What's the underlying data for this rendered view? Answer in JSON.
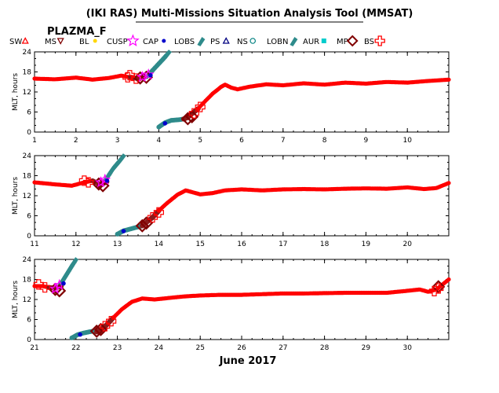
{
  "header": {
    "title": "(IKI RAS) Multi-Missions Situation Analysis Tool (MMSAT)",
    "satellite": "PLAZMA_F"
  },
  "legend": {
    "items": [
      {
        "label": "SW",
        "symbol": "triangle",
        "color": "#ff0000"
      },
      {
        "label": "MS",
        "symbol": "triangle-down",
        "color": "#800000"
      },
      {
        "label": "BL",
        "symbol": "dot",
        "color": "#ffd700"
      },
      {
        "label": "CUSP",
        "symbol": "star",
        "color": "#ff00ff"
      },
      {
        "label": "CAP",
        "symbol": "dot",
        "color": "#0000cc"
      },
      {
        "label": "LOBS",
        "symbol": "slab",
        "color": "#2e8b8b"
      },
      {
        "label": "PS",
        "symbol": "triangle",
        "color": "#000080"
      },
      {
        "label": "NS",
        "symbol": "circle",
        "color": "#008080"
      },
      {
        "label": "LOBN",
        "symbol": "slab",
        "color": "#2e8b8b"
      },
      {
        "label": "AUR",
        "symbol": "square",
        "color": "#00cccc"
      },
      {
        "label": "MP",
        "symbol": "diamond",
        "color": "#800000"
      },
      {
        "label": "BS",
        "symbol": "cross",
        "color": "#ff0000"
      }
    ]
  },
  "colors": {
    "sw": "#ff0000",
    "ms": "#8b1a1a",
    "lobe": "#2e8b8b",
    "ps": "#000080",
    "mp": "#800000",
    "bs": "#ff0000",
    "cusp": "#ff00ff",
    "cap": "#0000cc"
  },
  "chart_data": {
    "type": "scatter",
    "xlabel": "June 2017",
    "ylabel": "MLT, hours",
    "yticks": [
      "0",
      "6",
      "12",
      "18",
      "24"
    ],
    "panels": [
      {
        "xlim": [
          1,
          11
        ],
        "ylim": [
          0,
          24
        ],
        "xticks": [
          1,
          2,
          3,
          4,
          5,
          6,
          7,
          8,
          9,
          10
        ],
        "sw": [
          [
            1.0,
            16.0
          ],
          [
            1.5,
            15.8
          ],
          [
            2.0,
            16.3
          ],
          [
            2.4,
            15.7
          ],
          [
            2.8,
            16.2
          ],
          [
            3.1,
            16.9
          ],
          [
            3.3,
            16.4
          ]
        ],
        "ms": [
          [
            3.3,
            16.4
          ],
          [
            3.5,
            16.0
          ],
          [
            3.7,
            16.6
          ]
        ],
        "lobe": [
          [
            3.75,
            17.5
          ],
          [
            3.9,
            19.5
          ],
          [
            4.05,
            21.5
          ],
          [
            4.2,
            23.5
          ]
        ],
        "ps": [
          [
            4.0,
            1.5
          ],
          [
            4.15,
            2.8
          ],
          [
            4.3,
            3.5
          ],
          [
            4.5,
            3.7
          ],
          [
            4.6,
            3.9
          ]
        ],
        "ms2": [
          [
            4.6,
            3.9
          ],
          [
            4.7,
            4.4
          ],
          [
            4.8,
            5.5
          ],
          [
            4.95,
            7.0
          ]
        ],
        "sw2": [
          [
            4.95,
            7.0
          ],
          [
            5.1,
            9.0
          ],
          [
            5.3,
            11.5
          ],
          [
            5.5,
            13.5
          ],
          [
            5.6,
            14.2
          ],
          [
            5.75,
            13.3
          ],
          [
            5.9,
            12.8
          ],
          [
            6.2,
            13.6
          ],
          [
            6.6,
            14.3
          ],
          [
            7.0,
            14.0
          ],
          [
            7.5,
            14.6
          ],
          [
            8.0,
            14.2
          ],
          [
            8.5,
            14.8
          ],
          [
            9.0,
            14.5
          ],
          [
            9.5,
            15.0
          ],
          [
            10.0,
            14.8
          ],
          [
            10.5,
            15.3
          ],
          [
            11.0,
            15.7
          ]
        ],
        "mp": [
          [
            3.55,
            16.2
          ],
          [
            3.7,
            16.4
          ],
          [
            4.7,
            4.0
          ],
          [
            4.8,
            4.6
          ]
        ],
        "bs": [
          [
            3.25,
            16.4
          ],
          [
            3.3,
            17.0
          ],
          [
            3.45,
            16.0
          ],
          [
            4.85,
            5.6
          ],
          [
            5.0,
            7.5
          ]
        ],
        "cusp": [
          [
            3.6,
            16.5
          ],
          [
            3.75,
            17.2
          ]
        ],
        "cap": [
          [
            3.8,
            17.0
          ],
          [
            4.15,
            2.6
          ]
        ]
      },
      {
        "xlim": [
          11,
          21
        ],
        "ylim": [
          0,
          24
        ],
        "xticks": [
          11,
          12,
          13,
          14,
          15,
          16,
          17,
          18,
          19,
          20
        ],
        "sw": [
          [
            11.0,
            16.0
          ],
          [
            11.5,
            15.4
          ],
          [
            11.9,
            15.0
          ],
          [
            12.2,
            16.0
          ],
          [
            12.4,
            16.5
          ]
        ],
        "ms": [
          [
            12.4,
            16.5
          ],
          [
            12.6,
            15.2
          ],
          [
            12.75,
            16.2
          ]
        ],
        "lobe": [
          [
            12.75,
            17.8
          ],
          [
            12.85,
            19.8
          ],
          [
            13.0,
            22.0
          ],
          [
            13.1,
            23.5
          ]
        ],
        "ps": [
          [
            13.0,
            0.5
          ],
          [
            13.15,
            1.5
          ],
          [
            13.3,
            2.0
          ],
          [
            13.45,
            2.5
          ],
          [
            13.6,
            3.0
          ]
        ],
        "ms2": [
          [
            13.6,
            3.0
          ],
          [
            13.7,
            4.0
          ],
          [
            13.85,
            5.5
          ],
          [
            14.0,
            7.5
          ]
        ],
        "sw2": [
          [
            14.0,
            7.5
          ],
          [
            14.2,
            9.8
          ],
          [
            14.45,
            12.3
          ],
          [
            14.65,
            13.6
          ],
          [
            14.8,
            13.1
          ],
          [
            15.0,
            12.4
          ],
          [
            15.3,
            12.8
          ],
          [
            15.6,
            13.6
          ],
          [
            16.0,
            13.9
          ],
          [
            16.5,
            13.6
          ],
          [
            17.0,
            13.9
          ],
          [
            17.5,
            14.0
          ],
          [
            18.0,
            13.9
          ],
          [
            18.5,
            14.1
          ],
          [
            19.0,
            14.2
          ],
          [
            19.5,
            14.1
          ],
          [
            20.0,
            14.5
          ],
          [
            20.4,
            14.0
          ],
          [
            20.7,
            14.3
          ],
          [
            21.0,
            15.8
          ]
        ],
        "mp": [
          [
            12.55,
            15.5
          ],
          [
            12.65,
            15.0
          ],
          [
            13.6,
            3.0
          ],
          [
            13.7,
            3.8
          ]
        ],
        "bs": [
          [
            12.2,
            16.5
          ],
          [
            12.3,
            16.0
          ],
          [
            13.85,
            5.5
          ],
          [
            14.0,
            7.0
          ]
        ],
        "cusp": [
          [
            12.6,
            16.0
          ],
          [
            12.7,
            16.8
          ]
        ],
        "cap": [
          [
            12.75,
            16.5
          ],
          [
            13.15,
            1.4
          ]
        ]
      },
      {
        "xlim": [
          21,
          31
        ],
        "ylim": [
          0,
          24
        ],
        "xticks": [
          21,
          22,
          23,
          24,
          25,
          26,
          27,
          28,
          29,
          30
        ],
        "sw": [
          [
            21.0,
            16.0
          ],
          [
            21.2,
            16.0
          ],
          [
            21.35,
            15.6
          ]
        ],
        "ms": [
          [
            21.35,
            15.6
          ],
          [
            21.5,
            15.4
          ],
          [
            21.65,
            16.0
          ]
        ],
        "lobe": [
          [
            21.65,
            17.5
          ],
          [
            21.75,
            19.5
          ],
          [
            21.85,
            21.5
          ],
          [
            21.95,
            23.5
          ]
        ],
        "ps": [
          [
            21.9,
            0.5
          ],
          [
            22.05,
            1.5
          ],
          [
            22.2,
            2.0
          ],
          [
            22.4,
            2.5
          ],
          [
            22.5,
            2.3
          ]
        ],
        "ms2": [
          [
            22.5,
            2.3
          ],
          [
            22.6,
            3.0
          ],
          [
            22.75,
            4.5
          ],
          [
            22.9,
            6.5
          ]
        ],
        "sw2": [
          [
            22.9,
            6.5
          ],
          [
            23.1,
            9.0
          ],
          [
            23.35,
            11.3
          ],
          [
            23.6,
            12.3
          ],
          [
            23.9,
            12.0
          ],
          [
            24.2,
            12.4
          ],
          [
            24.6,
            12.9
          ],
          [
            25.0,
            13.2
          ],
          [
            25.5,
            13.4
          ],
          [
            26.0,
            13.4
          ],
          [
            26.5,
            13.6
          ],
          [
            27.0,
            13.8
          ],
          [
            27.5,
            13.8
          ],
          [
            28.0,
            13.9
          ],
          [
            28.5,
            14.0
          ],
          [
            29.0,
            14.0
          ],
          [
            29.5,
            14.0
          ],
          [
            30.0,
            14.6
          ],
          [
            30.3,
            15.0
          ],
          [
            30.5,
            14.3
          ],
          [
            30.7,
            15.0
          ],
          [
            30.85,
            16.5
          ],
          [
            31.0,
            18.0
          ]
        ],
        "mp": [
          [
            21.5,
            15.0
          ],
          [
            21.6,
            14.6
          ],
          [
            22.5,
            2.5
          ],
          [
            22.6,
            3.0
          ],
          [
            30.75,
            15.8
          ]
        ],
        "bs": [
          [
            21.1,
            16.5
          ],
          [
            21.25,
            15.6
          ],
          [
            22.7,
            4.0
          ],
          [
            22.85,
            5.5
          ],
          [
            30.65,
            14.5
          ],
          [
            30.75,
            15.3
          ]
        ],
        "cusp": [
          [
            21.5,
            15.2
          ],
          [
            21.6,
            16.3
          ]
        ],
        "cap": [
          [
            21.7,
            16.8
          ],
          [
            22.1,
            1.5
          ]
        ]
      }
    ]
  }
}
